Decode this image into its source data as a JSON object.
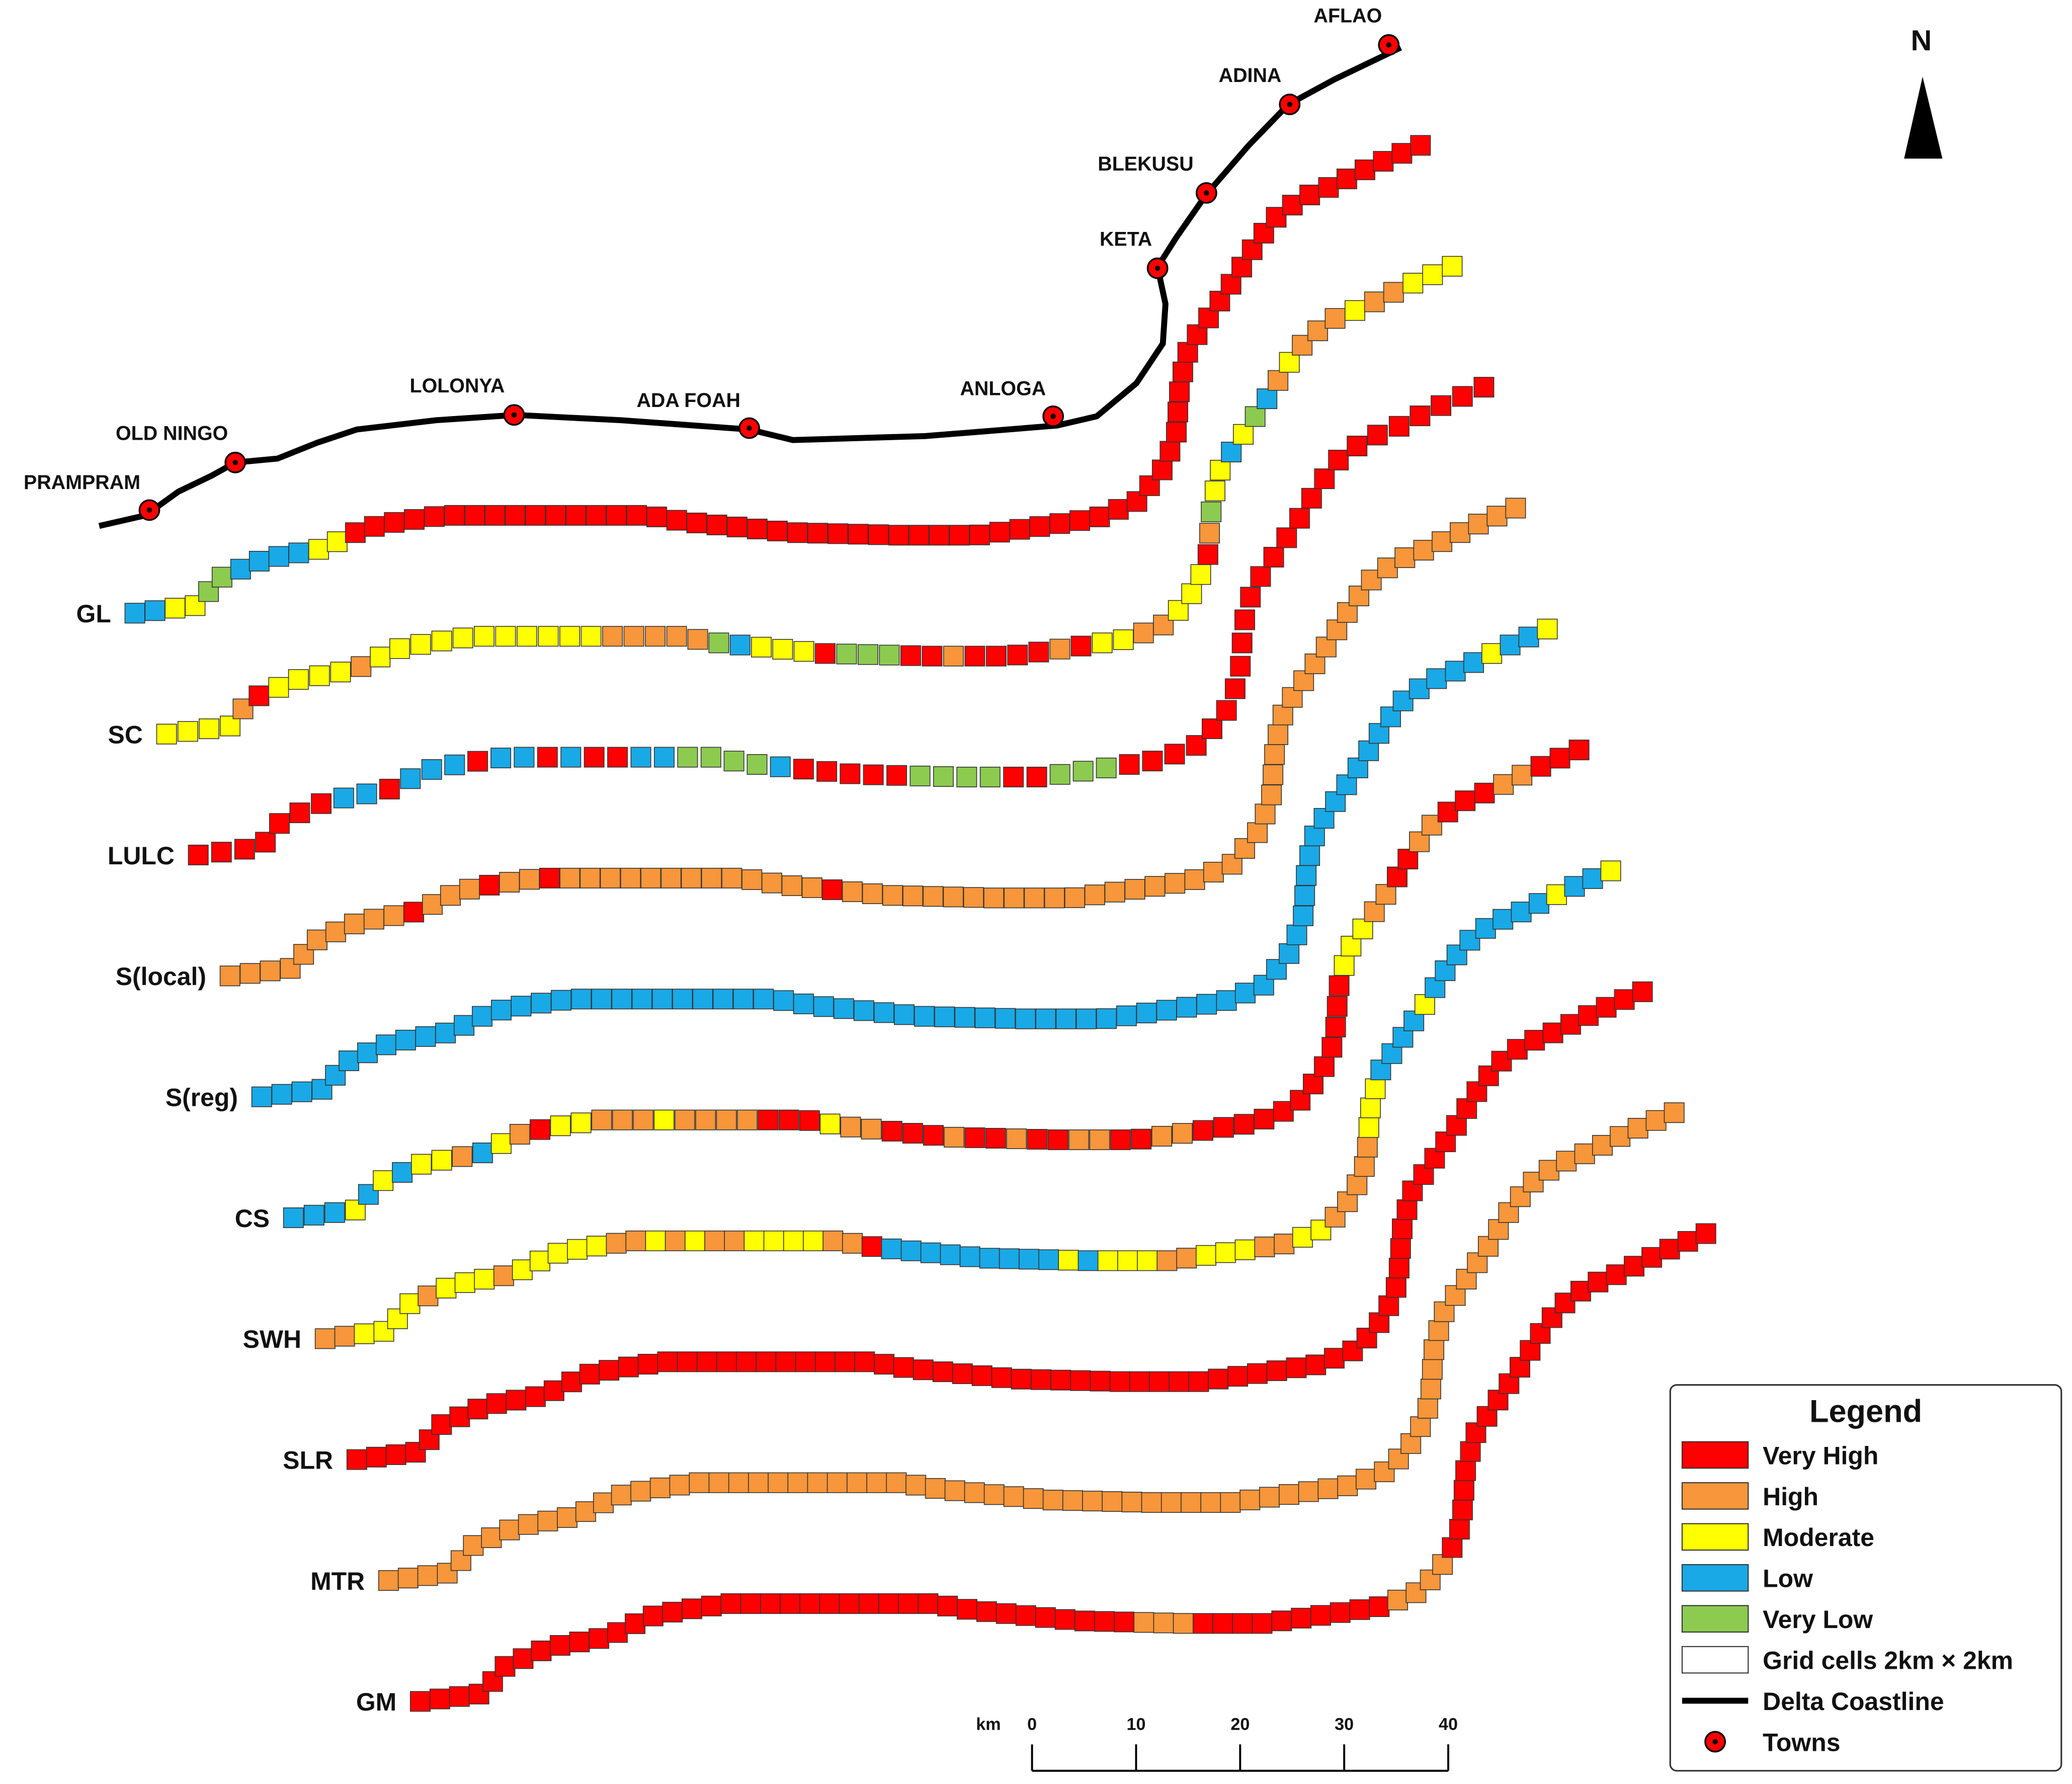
{
  "north": "N",
  "towns": [
    "PRAMPRAM",
    "OLD NINGO",
    "LOLONYA",
    "ADA FOAH",
    "ANLOGA",
    "KETA",
    "BLEKUSU",
    "ADINA",
    "AFLAO"
  ],
  "strips": [
    {
      "label": "GL",
      "cells": [
        [
          3,
          2
        ],
        [
          2,
          2
        ],
        [
          4,
          2
        ],
        [
          3,
          4
        ],
        [
          2,
          2
        ],
        [
          0,
          64
        ]
      ]
    },
    {
      "label": "SC",
      "cells": [
        [
          2,
          4
        ],
        [
          1,
          1
        ],
        [
          0,
          1
        ],
        [
          2,
          4
        ],
        [
          1,
          1
        ],
        [
          2,
          11
        ],
        [
          1,
          5
        ],
        [
          4,
          1
        ],
        [
          3,
          1
        ],
        [
          2,
          3
        ],
        [
          0,
          1
        ],
        [
          4,
          3
        ],
        [
          0,
          2
        ],
        [
          1,
          1
        ],
        [
          0,
          4
        ],
        [
          1,
          1
        ],
        [
          0,
          1
        ],
        [
          2,
          2
        ],
        [
          1,
          2
        ],
        [
          2,
          3
        ],
        [
          0,
          1
        ],
        [
          1,
          1
        ],
        [
          4,
          1
        ],
        [
          2,
          2
        ],
        [
          3,
          1
        ],
        [
          2,
          1
        ],
        [
          4,
          1
        ],
        [
          3,
          1
        ],
        [
          1,
          1
        ],
        [
          2,
          1
        ],
        [
          1,
          3
        ],
        [
          2,
          1
        ],
        [
          1,
          2
        ],
        [
          2,
          3
        ]
      ]
    },
    {
      "label": "LULC",
      "cells": [
        [
          0,
          7
        ],
        [
          3,
          2
        ],
        [
          0,
          1
        ],
        [
          3,
          3
        ],
        [
          0,
          1
        ],
        [
          3,
          2
        ],
        [
          0,
          1
        ],
        [
          3,
          1
        ],
        [
          0,
          2
        ],
        [
          3,
          2
        ],
        [
          4,
          4
        ],
        [
          3,
          1
        ],
        [
          0,
          5
        ],
        [
          4,
          4
        ],
        [
          0,
          2
        ],
        [
          4,
          3
        ],
        [
          0,
          25
        ]
      ]
    },
    {
      "label": "S(local)",
      "cells": [
        [
          1,
          10
        ],
        [
          0,
          1
        ],
        [
          1,
          3
        ],
        [
          0,
          1
        ],
        [
          1,
          2
        ],
        [
          0,
          1
        ],
        [
          1,
          13
        ],
        [
          0,
          1
        ],
        [
          1,
          44
        ]
      ]
    },
    {
      "label": "S(reg)",
      "cells": [
        [
          3,
          72
        ],
        [
          2,
          1
        ],
        [
          3,
          2
        ],
        [
          2,
          1
        ]
      ]
    },
    {
      "label": "CS",
      "cells": [
        [
          3,
          3
        ],
        [
          2,
          1
        ],
        [
          3,
          1
        ],
        [
          2,
          1
        ],
        [
          3,
          1
        ],
        [
          2,
          2
        ],
        [
          1,
          1
        ],
        [
          3,
          1
        ],
        [
          2,
          1
        ],
        [
          1,
          1
        ],
        [
          0,
          1
        ],
        [
          2,
          2
        ],
        [
          1,
          3
        ],
        [
          2,
          1
        ],
        [
          1,
          4
        ],
        [
          0,
          3
        ],
        [
          2,
          1
        ],
        [
          1,
          2
        ],
        [
          0,
          3
        ],
        [
          1,
          1
        ],
        [
          0,
          2
        ],
        [
          1,
          1
        ],
        [
          0,
          2
        ],
        [
          1,
          2
        ],
        [
          0,
          2
        ],
        [
          1,
          2
        ],
        [
          0,
          12
        ],
        [
          2,
          3
        ],
        [
          1,
          2
        ],
        [
          0,
          2
        ],
        [
          1,
          2
        ],
        [
          0,
          3
        ],
        [
          1,
          2
        ],
        [
          0,
          3
        ]
      ]
    },
    {
      "label": "SWH",
      "cells": [
        [
          1,
          2
        ],
        [
          2,
          4
        ],
        [
          1,
          1
        ],
        [
          2,
          3
        ],
        [
          1,
          1
        ],
        [
          2,
          5
        ],
        [
          1,
          2
        ],
        [
          2,
          1
        ],
        [
          1,
          1
        ],
        [
          2,
          1
        ],
        [
          1,
          2
        ],
        [
          2,
          4
        ],
        [
          1,
          2
        ],
        [
          0,
          1
        ],
        [
          3,
          9
        ],
        [
          2,
          1
        ],
        [
          3,
          1
        ],
        [
          2,
          3
        ],
        [
          1,
          2
        ],
        [
          2,
          3
        ],
        [
          1,
          2
        ],
        [
          2,
          2
        ],
        [
          1,
          5
        ],
        [
          2,
          3
        ],
        [
          3,
          4
        ],
        [
          2,
          1
        ],
        [
          3,
          8
        ],
        [
          2,
          1
        ],
        [
          3,
          2
        ],
        [
          2,
          1
        ]
      ]
    },
    {
      "label": "SLR",
      "cells": [
        [
          0,
          78
        ]
      ]
    },
    {
      "label": "MTR",
      "cells": [
        [
          1,
          78
        ]
      ]
    },
    {
      "label": "GM",
      "cells": [
        [
          0,
          38
        ],
        [
          1,
          3
        ],
        [
          0,
          10
        ],
        [
          1,
          4
        ],
        [
          0,
          23
        ]
      ]
    }
  ],
  "legend": {
    "title": "Legend",
    "classes": [
      {
        "label": "Very High",
        "color": "#ff0000"
      },
      {
        "label": "High",
        "color": "#f7963a"
      },
      {
        "label": "Moderate",
        "color": "#ffff00"
      },
      {
        "label": "Low",
        "color": "#19a9e6"
      },
      {
        "label": "Very Low",
        "color": "#8ccb4f"
      }
    ],
    "grid": "Grid cells 2km × 2km",
    "coastline": "Delta Coastline",
    "towns": "Towns"
  },
  "scale_bar": {
    "unit": "km",
    "ticks": [
      0,
      10,
      20,
      30,
      40
    ]
  }
}
